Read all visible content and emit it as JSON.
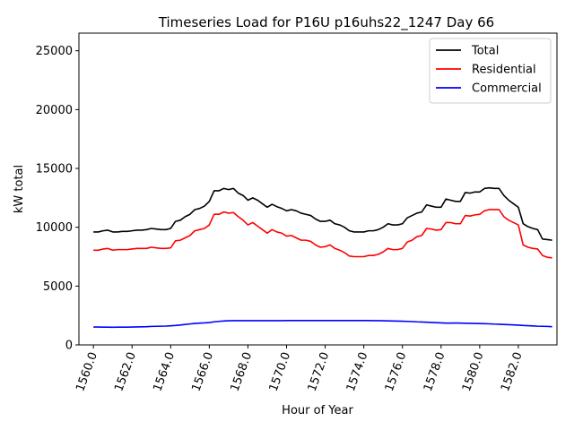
{
  "chart_data": {
    "type": "line",
    "title": "Timeseries Load for P16U p16uhs22_1247  Day 66",
    "xlabel": "Hour of Year",
    "ylabel": "kW total",
    "xlim": [
      1559.25,
      1584.0
    ],
    "ylim": [
      0,
      26500
    ],
    "xticks": [
      1560,
      1562,
      1564,
      1566,
      1568,
      1570,
      1572,
      1574,
      1576,
      1578,
      1580,
      1582
    ],
    "xtick_labels": [
      "1560.0",
      "1562.0",
      "1564.0",
      "1566.0",
      "1568.0",
      "1570.0",
      "1572.0",
      "1574.0",
      "1576.0",
      "1578.0",
      "1580.0",
      "1582.0"
    ],
    "yticks": [
      0,
      5000,
      10000,
      15000,
      20000,
      25000
    ],
    "ytick_labels": [
      "0",
      "5000",
      "10000",
      "15000",
      "20000",
      "25000"
    ],
    "legend_position": "top-right",
    "x": [
      1560.0,
      1560.25,
      1560.5,
      1560.75,
      1561.0,
      1561.25,
      1561.5,
      1561.75,
      1562.0,
      1562.25,
      1562.5,
      1562.75,
      1563.0,
      1563.25,
      1563.5,
      1563.75,
      1564.0,
      1564.25,
      1564.5,
      1564.75,
      1565.0,
      1565.25,
      1565.5,
      1565.75,
      1566.0,
      1566.25,
      1566.5,
      1566.75,
      1567.0,
      1567.25,
      1567.5,
      1567.75,
      1568.0,
      1568.25,
      1568.5,
      1568.75,
      1569.0,
      1569.25,
      1569.5,
      1569.75,
      1570.0,
      1570.25,
      1570.5,
      1570.75,
      1571.0,
      1571.25,
      1571.5,
      1571.75,
      1572.0,
      1572.25,
      1572.5,
      1572.75,
      1573.0,
      1573.25,
      1573.5,
      1573.75,
      1574.0,
      1574.25,
      1574.5,
      1574.75,
      1575.0,
      1575.25,
      1575.5,
      1575.75,
      1576.0,
      1576.25,
      1576.5,
      1576.75,
      1577.0,
      1577.25,
      1577.5,
      1577.75,
      1578.0,
      1578.25,
      1578.5,
      1578.75,
      1579.0,
      1579.25,
      1579.5,
      1579.75,
      1580.0,
      1580.25,
      1580.5,
      1580.75,
      1581.0,
      1581.25,
      1581.5,
      1581.75,
      1582.0,
      1582.25,
      1582.5,
      1582.75,
      1583.0,
      1583.25,
      1583.5,
      1583.75
    ],
    "series": [
      {
        "name": "Total",
        "color": "#000000",
        "values": [
          9600,
          9600,
          9700,
          9750,
          9600,
          9600,
          9650,
          9650,
          9700,
          9750,
          9750,
          9800,
          9900,
          9850,
          9800,
          9800,
          9900,
          10500,
          10600,
          10900,
          11100,
          11500,
          11600,
          11800,
          12200,
          13100,
          13100,
          13300,
          13200,
          13300,
          12900,
          12700,
          12300,
          12500,
          12300,
          12000,
          11700,
          11950,
          11750,
          11600,
          11400,
          11500,
          11400,
          11200,
          11100,
          11000,
          10700,
          10500,
          10500,
          10600,
          10300,
          10200,
          10000,
          9700,
          9600,
          9600,
          9600,
          9700,
          9700,
          9800,
          10000,
          10300,
          10200,
          10200,
          10300,
          10800,
          11000,
          11200,
          11300,
          11900,
          11800,
          11700,
          11700,
          12400,
          12300,
          12200,
          12200,
          12950,
          12900,
          13000,
          13000,
          13300,
          13350,
          13300,
          13300,
          12700,
          12300,
          12000,
          11700,
          10300,
          10050,
          9900,
          9800,
          9000,
          8950,
          8900
        ]
      },
      {
        "name": "Residential",
        "color": "#ff0000",
        "values": [
          8050,
          8050,
          8150,
          8200,
          8050,
          8100,
          8100,
          8100,
          8150,
          8200,
          8200,
          8200,
          8300,
          8250,
          8200,
          8200,
          8250,
          8850,
          8900,
          9100,
          9300,
          9700,
          9800,
          9900,
          10200,
          11100,
          11100,
          11300,
          11200,
          11250,
          10900,
          10600,
          10200,
          10400,
          10100,
          9800,
          9500,
          9800,
          9600,
          9500,
          9250,
          9300,
          9100,
          8900,
          8900,
          8800,
          8500,
          8300,
          8350,
          8500,
          8200,
          8050,
          7850,
          7550,
          7500,
          7500,
          7500,
          7600,
          7600,
          7700,
          7900,
          8200,
          8100,
          8100,
          8200,
          8750,
          8900,
          9200,
          9300,
          9900,
          9850,
          9750,
          9800,
          10400,
          10400,
          10300,
          10300,
          11000,
          10950,
          11050,
          11100,
          11400,
          11500,
          11500,
          11500,
          10900,
          10600,
          10400,
          10200,
          8500,
          8300,
          8200,
          8150,
          7600,
          7450,
          7400
        ]
      },
      {
        "name": "Commercial",
        "color": "#0000ff",
        "values": [
          1520,
          1520,
          1510,
          1510,
          1500,
          1510,
          1510,
          1510,
          1520,
          1530,
          1540,
          1550,
          1570,
          1580,
          1590,
          1600,
          1620,
          1650,
          1690,
          1740,
          1780,
          1820,
          1850,
          1870,
          1900,
          1960,
          2000,
          2030,
          2050,
          2060,
          2060,
          2060,
          2060,
          2060,
          2060,
          2060,
          2060,
          2060,
          2060,
          2060,
          2070,
          2070,
          2070,
          2070,
          2070,
          2070,
          2070,
          2070,
          2070,
          2070,
          2070,
          2070,
          2070,
          2070,
          2070,
          2070,
          2070,
          2070,
          2060,
          2060,
          2050,
          2040,
          2030,
          2020,
          2010,
          2000,
          1980,
          1960,
          1950,
          1930,
          1910,
          1890,
          1870,
          1850,
          1850,
          1860,
          1850,
          1840,
          1830,
          1820,
          1810,
          1800,
          1790,
          1770,
          1760,
          1740,
          1720,
          1700,
          1680,
          1650,
          1630,
          1610,
          1590,
          1580,
          1570,
          1550
        ]
      }
    ]
  }
}
